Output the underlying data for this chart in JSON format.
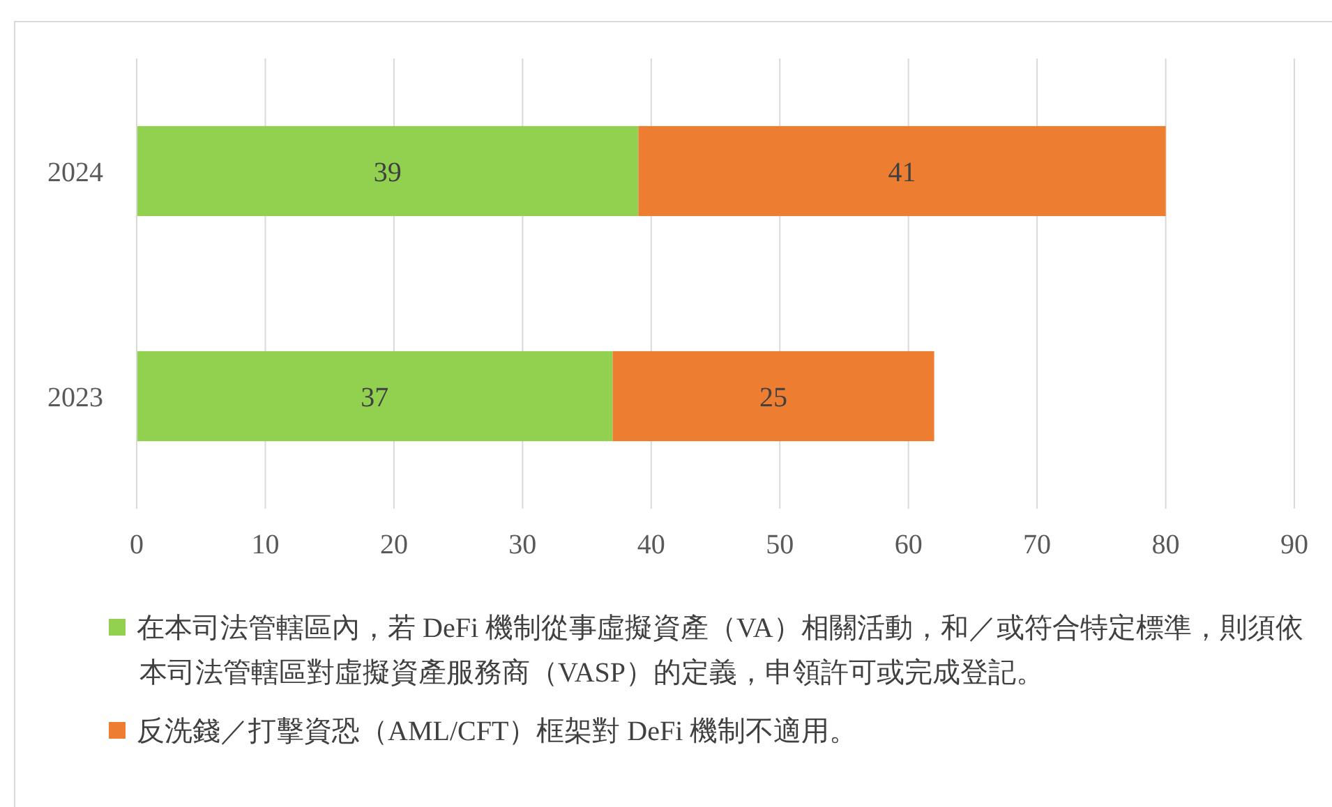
{
  "chart_data": {
    "type": "bar",
    "orientation": "horizontal",
    "stacked": true,
    "categories": [
      "2024",
      "2023"
    ],
    "series": [
      {
        "name": "在本司法管轄區內，若 DeFi 機制從事虛擬資產（VA）相關活動，和／或符合特定標準，則須依本司法管轄區對虛擬資產服務商（VASP）的定義，申領許可或完成登記。",
        "color": "#92d050",
        "values": [
          39,
          37
        ]
      },
      {
        "name": "反洗錢／打擊資恐（AML/CFT）框架對 DeFi 機制不適用。",
        "color": "#ed7d31",
        "values": [
          41,
          25
        ]
      }
    ],
    "xlim": [
      0,
      90
    ],
    "xticks": [
      0,
      10,
      20,
      30,
      40,
      50,
      60,
      70,
      80,
      90
    ],
    "grid": "x",
    "data_labels": true,
    "legend": "bottom"
  }
}
